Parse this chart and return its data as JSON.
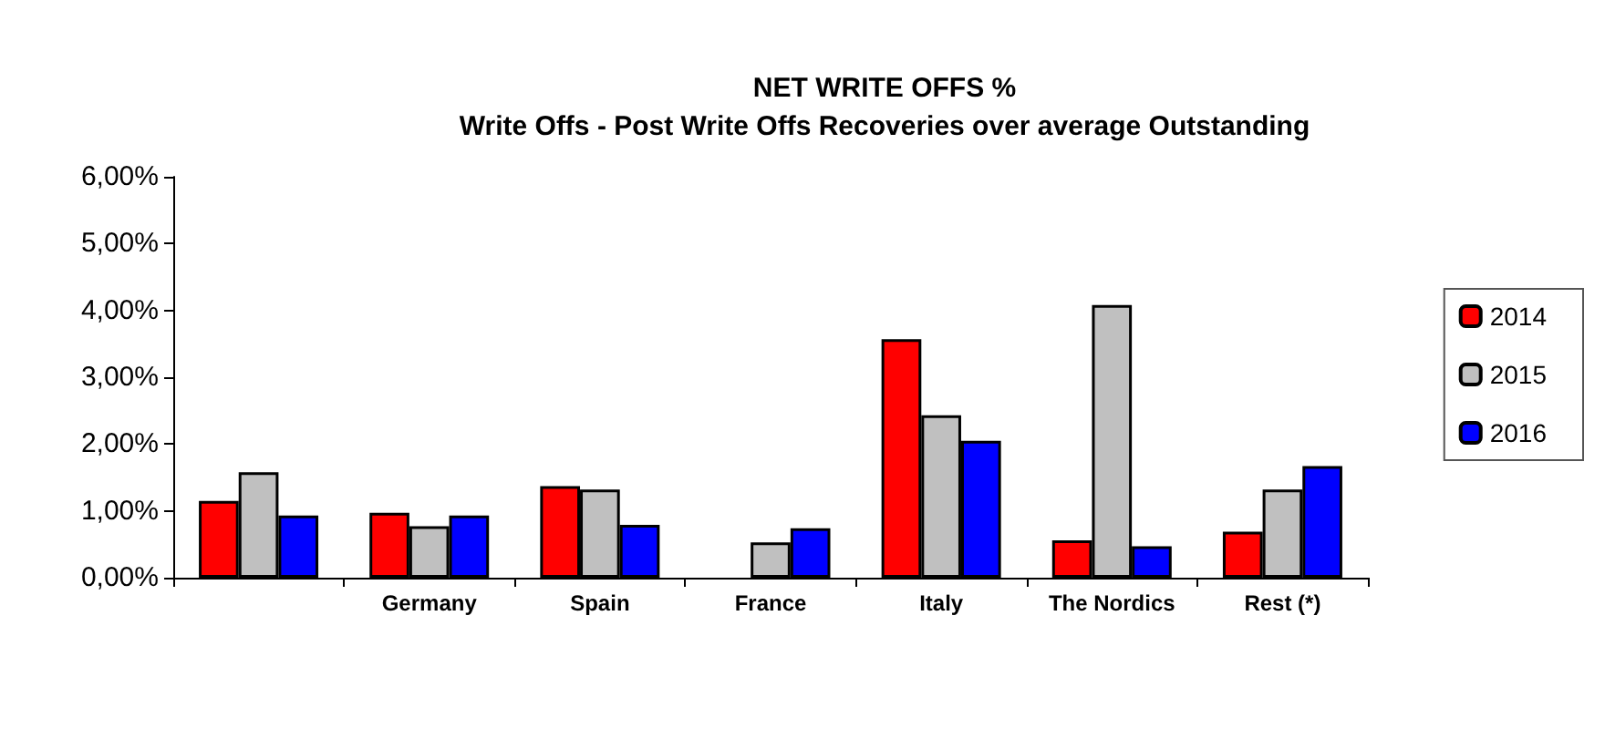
{
  "chart_data": {
    "type": "bar",
    "title": "NET WRITE OFFS %",
    "subtitle": "Write Offs - Post Write Offs Recoveries over average Outstanding",
    "categories": [
      null,
      "Germany",
      "Spain",
      "France",
      "Italy",
      "The Nordics",
      "Rest (*)"
    ],
    "series": [
      {
        "name": "2014",
        "color": "#ff0000",
        "values": [
          1.15,
          0.97,
          1.37,
          null,
          3.57,
          0.56,
          0.69
        ]
      },
      {
        "name": "2015",
        "color": "#c0c0c0",
        "values": [
          1.58,
          0.77,
          1.32,
          0.53,
          2.43,
          4.08,
          1.32
        ]
      },
      {
        "name": "2016",
        "color": "#0000ff",
        "values": [
          0.93,
          0.93,
          0.79,
          0.74,
          2.05,
          0.47,
          1.67
        ]
      }
    ],
    "ylim": [
      0,
      6
    ],
    "yticks": [
      {
        "value": 0,
        "label": "0,00%"
      },
      {
        "value": 1,
        "label": "1,00%"
      },
      {
        "value": 2,
        "label": "2,00%"
      },
      {
        "value": 3,
        "label": "3,00%"
      },
      {
        "value": 4,
        "label": "4,00%"
      },
      {
        "value": 5,
        "label": "5,00%"
      },
      {
        "value": 6,
        "label": "6,00%"
      }
    ],
    "grid": false,
    "legend": "right"
  }
}
